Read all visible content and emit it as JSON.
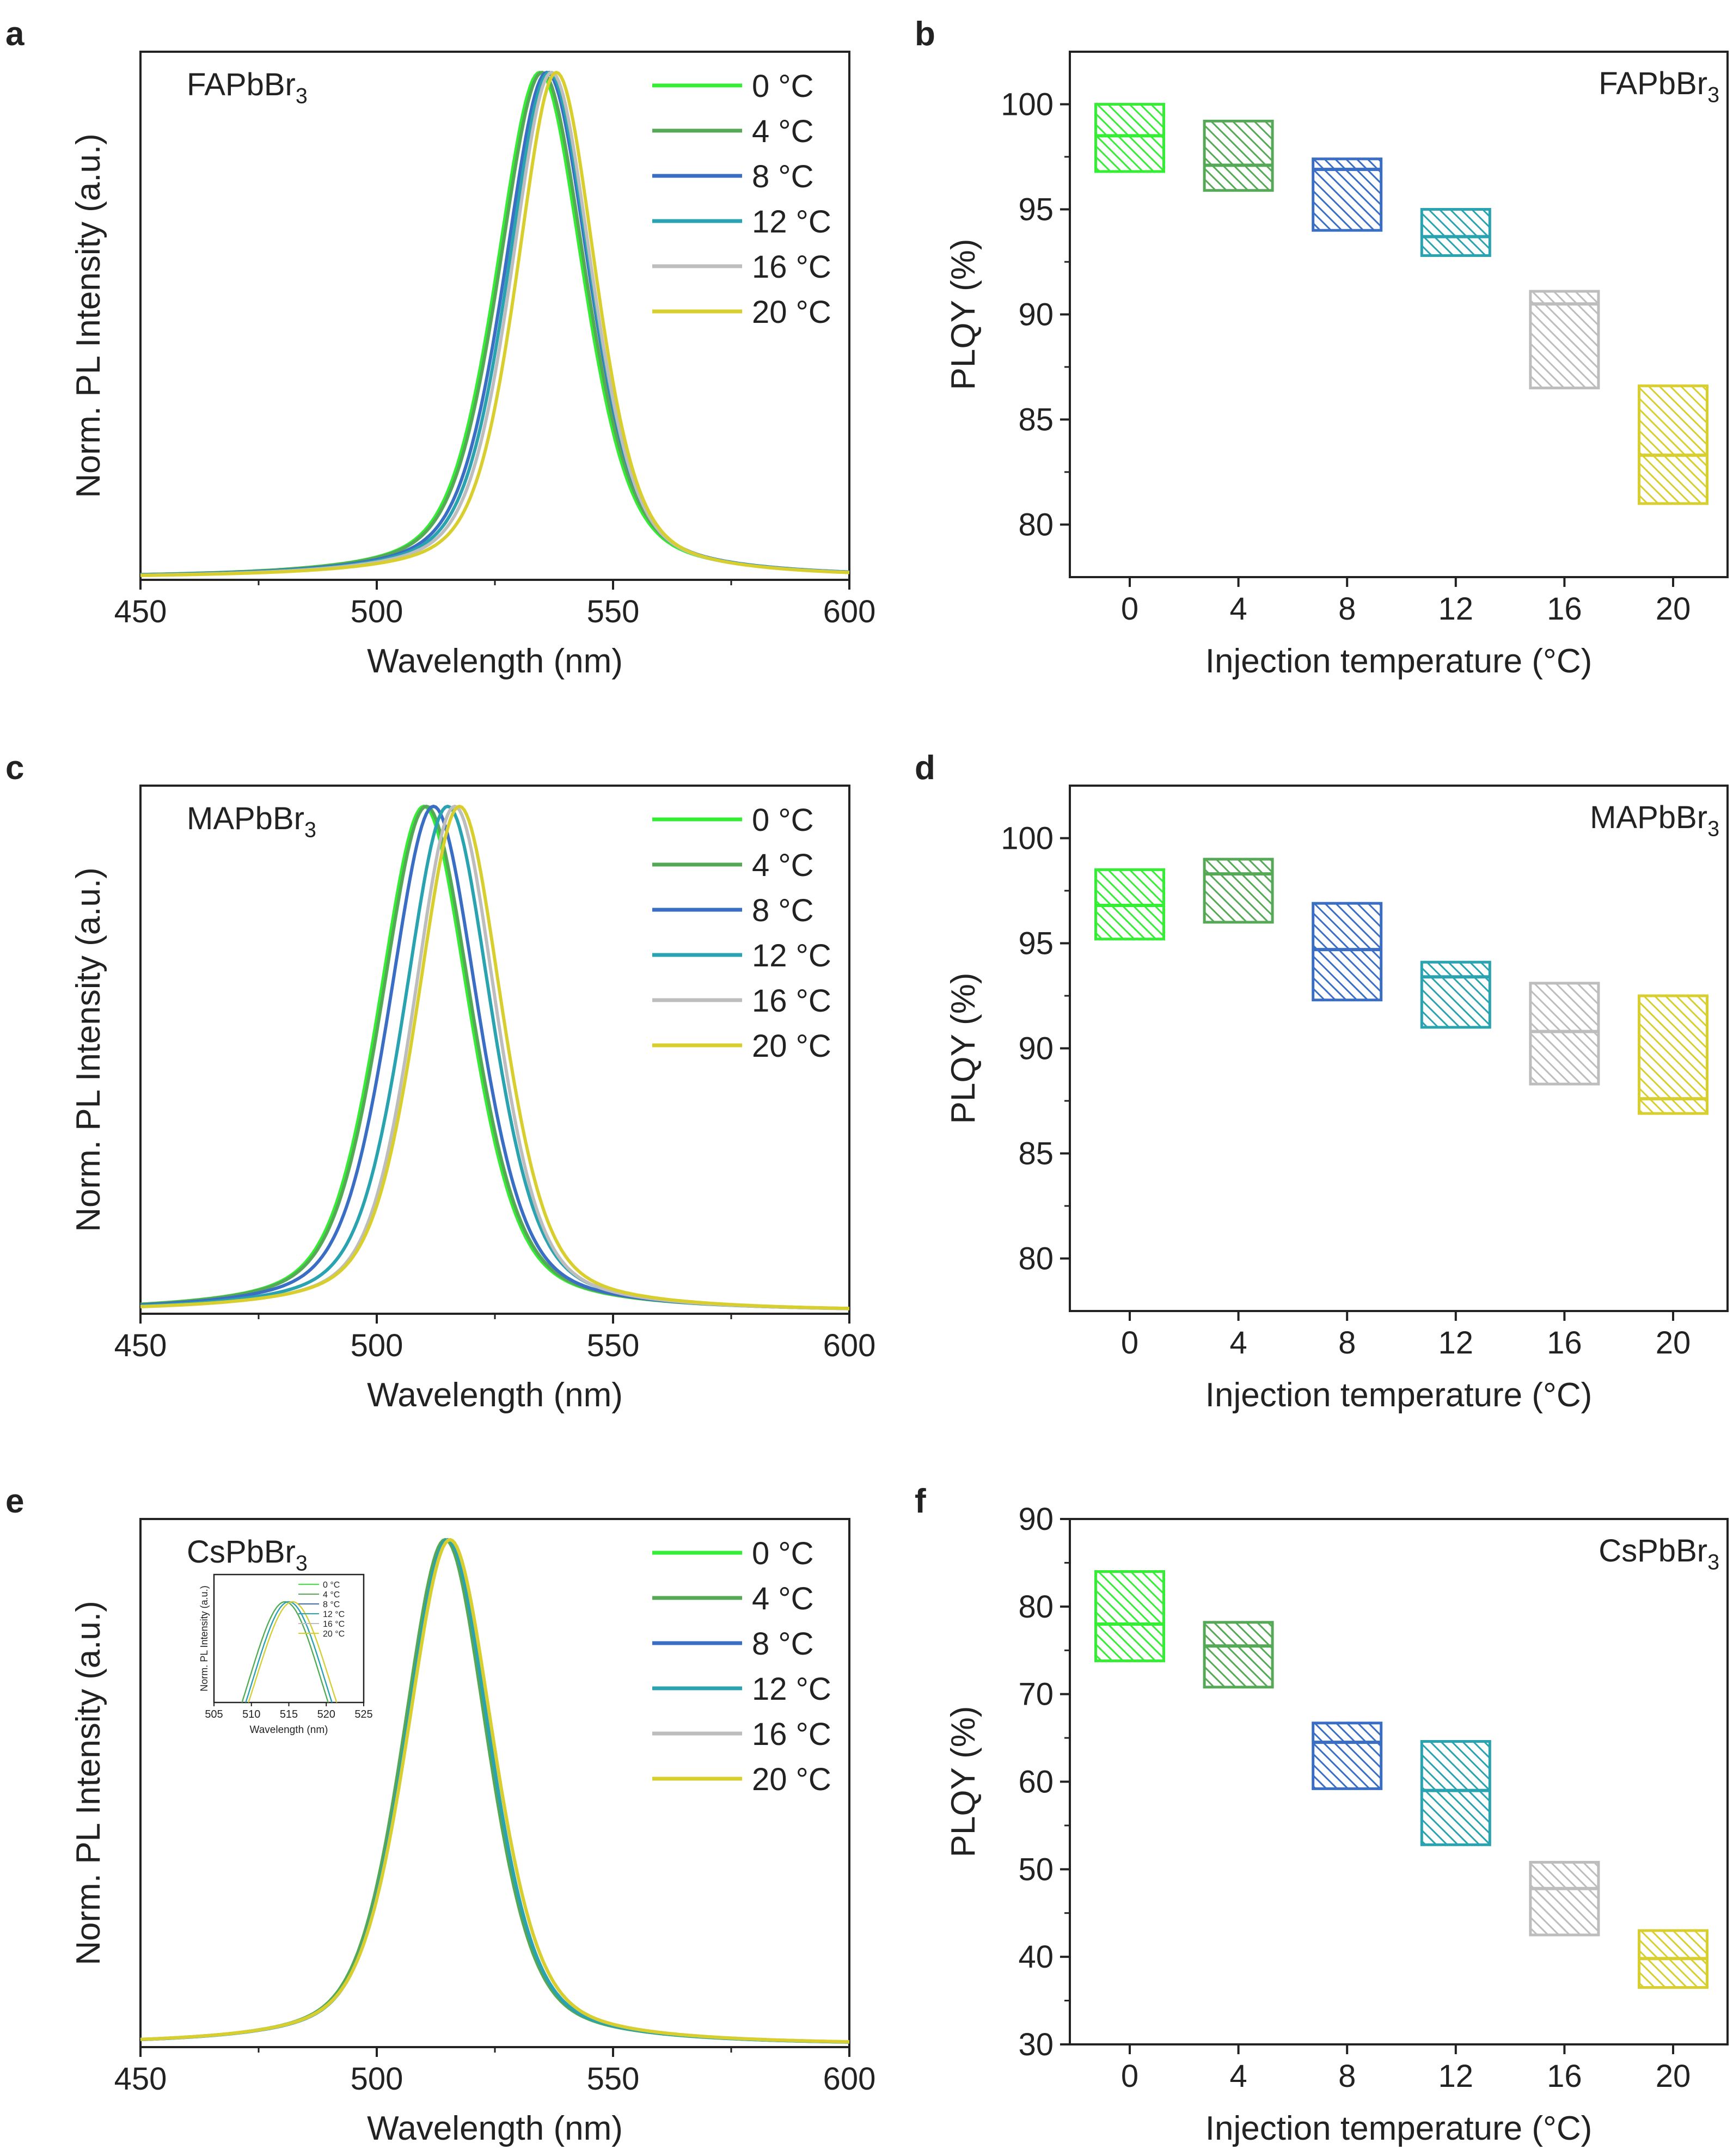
{
  "colors": {
    "c0": "#33ee33",
    "c4": "#55a855",
    "c8": "#3a6ec5",
    "c12": "#2aa3b0",
    "c16": "#bdbdbd",
    "c20": "#d8cf2e"
  },
  "legend_labels": [
    "0 °C",
    "4 °C",
    "8 °C",
    "12 °C",
    "16 °C",
    "20 °C"
  ],
  "chart_data": [
    {
      "id": "a",
      "type": "line",
      "panel_letter": "a",
      "material": "FAPbBr",
      "material_sub": "3",
      "xlabel": "Wavelength (nm)",
      "ylabel": "Norm. PL Intensity (a.u.)",
      "xlim": [
        450,
        600
      ],
      "ylim": [
        0,
        1.05
      ],
      "xticks": [
        "450",
        "500",
        "550",
        "600"
      ],
      "legend_position": "top-right",
      "series": [
        {
          "name": "0 °C",
          "peak": 534.5,
          "fwhm": 22.0
        },
        {
          "name": "4 °C",
          "peak": 535.0,
          "fwhm": 22.0
        },
        {
          "name": "8 °C",
          "peak": 536.0,
          "fwhm": 21.5
        },
        {
          "name": "12 °C",
          "peak": 536.5,
          "fwhm": 21.0
        },
        {
          "name": "16 °C",
          "peak": 537.0,
          "fwhm": 20.5
        },
        {
          "name": "20 °C",
          "peak": 538.0,
          "fwhm": 20.0
        }
      ]
    },
    {
      "id": "b",
      "type": "box",
      "panel_letter": "b",
      "material": "FAPbBr",
      "material_sub": "3",
      "xlabel": "Injection temperature (°C)",
      "ylabel": "PLQY (%)",
      "ylim": [
        77.5,
        102.5
      ],
      "yticks": [
        80,
        85,
        90,
        95,
        100
      ],
      "categories": [
        "0",
        "4",
        "8",
        "12",
        "16",
        "20"
      ],
      "boxes": [
        {
          "low": 96.8,
          "median": 98.5,
          "high": 100.0
        },
        {
          "low": 95.9,
          "median": 97.1,
          "high": 99.2
        },
        {
          "low": 94.0,
          "median": 96.9,
          "high": 97.4
        },
        {
          "low": 92.8,
          "median": 93.7,
          "high": 95.0
        },
        {
          "low": 86.5,
          "median": 90.5,
          "high": 91.1
        },
        {
          "low": 81.0,
          "median": 83.3,
          "high": 86.6
        }
      ]
    },
    {
      "id": "c",
      "type": "line",
      "panel_letter": "c",
      "material": "MAPbBr",
      "material_sub": "3",
      "xlabel": "Wavelength (nm)",
      "ylabel": "Norm. PL Intensity (a.u.)",
      "xlim": [
        450,
        600
      ],
      "ylim": [
        0,
        1.05
      ],
      "xticks": [
        "450",
        "500",
        "550",
        "600"
      ],
      "legend_position": "top-right",
      "series": [
        {
          "name": "0 °C",
          "peak": 510.0,
          "fwhm": 23.0
        },
        {
          "name": "4 °C",
          "peak": 510.5,
          "fwhm": 23.0
        },
        {
          "name": "8 °C",
          "peak": 512.0,
          "fwhm": 22.5
        },
        {
          "name": "12 °C",
          "peak": 515.0,
          "fwhm": 22.0
        },
        {
          "name": "16 °C",
          "peak": 516.5,
          "fwhm": 21.0
        },
        {
          "name": "20 °C",
          "peak": 517.5,
          "fwhm": 21.5
        }
      ]
    },
    {
      "id": "d",
      "type": "box",
      "panel_letter": "d",
      "material": "MAPbBr",
      "material_sub": "3",
      "xlabel": "Injection temperature (°C)",
      "ylabel": "PLQY (%)",
      "ylim": [
        77.5,
        102.5
      ],
      "yticks": [
        80,
        85,
        90,
        95,
        100
      ],
      "categories": [
        "0",
        "4",
        "8",
        "12",
        "16",
        "20"
      ],
      "boxes": [
        {
          "low": 95.2,
          "median": 96.8,
          "high": 98.5
        },
        {
          "low": 96.0,
          "median": 98.3,
          "high": 99.0
        },
        {
          "low": 92.3,
          "median": 94.7,
          "high": 96.9
        },
        {
          "low": 91.0,
          "median": 93.4,
          "high": 94.1
        },
        {
          "low": 88.3,
          "median": 90.8,
          "high": 93.1
        },
        {
          "low": 86.9,
          "median": 87.6,
          "high": 92.5
        }
      ]
    },
    {
      "id": "e",
      "type": "line",
      "panel_letter": "e",
      "material": "CsPbBr",
      "material_sub": "3",
      "xlabel": "Wavelength (nm)",
      "ylabel": "Norm. PL Intensity (a.u.)",
      "xlim": [
        450,
        600
      ],
      "ylim": [
        0,
        1.05
      ],
      "xticks": [
        "450",
        "500",
        "550",
        "600"
      ],
      "legend_position": "top-right",
      "series": [
        {
          "name": "0 °C",
          "peak": 514.5,
          "fwhm": 21.5
        },
        {
          "name": "4 °C",
          "peak": 514.5,
          "fwhm": 21.5
        },
        {
          "name": "8 °C",
          "peak": 515.0,
          "fwhm": 21.5
        },
        {
          "name": "12 °C",
          "peak": 515.0,
          "fwhm": 21.5
        },
        {
          "name": "16 °C",
          "peak": 515.5,
          "fwhm": 22.0
        },
        {
          "name": "20 °C",
          "peak": 515.5,
          "fwhm": 22.0
        }
      ],
      "inset": {
        "xlabel": "Wavelength (nm)",
        "ylabel": "Norm. PL Intensity (a.u.)",
        "xlim": [
          505,
          525
        ],
        "xticks": [
          "505",
          "510",
          "515",
          "520",
          "525"
        ]
      }
    },
    {
      "id": "f",
      "type": "box",
      "panel_letter": "f",
      "material": "CsPbBr",
      "material_sub": "3",
      "xlabel": "Injection temperature (°C)",
      "ylabel": "PLQY (%)",
      "ylim": [
        30,
        90
      ],
      "yticks": [
        30,
        40,
        50,
        60,
        70,
        80,
        90
      ],
      "categories": [
        "0",
        "4",
        "8",
        "12",
        "16",
        "20"
      ],
      "boxes": [
        {
          "low": 73.8,
          "median": 78.0,
          "high": 84.0
        },
        {
          "low": 70.8,
          "median": 75.5,
          "high": 78.2
        },
        {
          "low": 59.2,
          "median": 64.5,
          "high": 66.7
        },
        {
          "low": 52.8,
          "median": 59.0,
          "high": 64.6
        },
        {
          "low": 42.5,
          "median": 47.8,
          "high": 50.8
        },
        {
          "low": 36.5,
          "median": 39.8,
          "high": 43.0
        }
      ]
    }
  ]
}
